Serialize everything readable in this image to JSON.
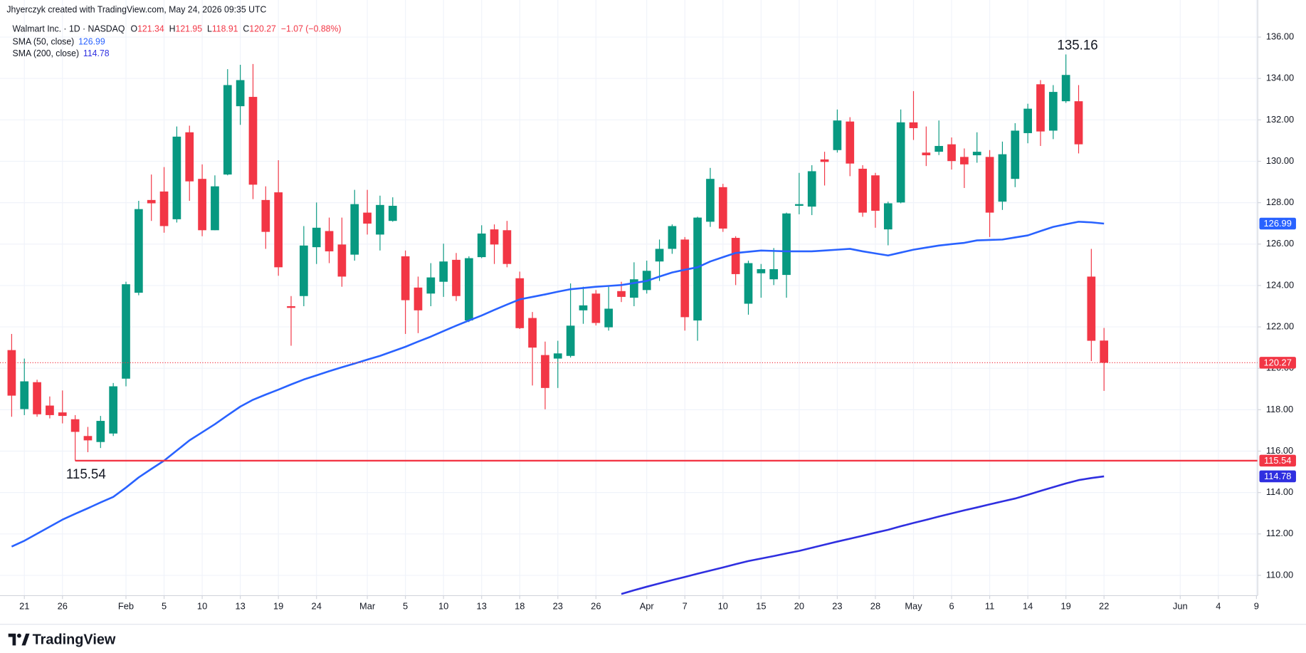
{
  "header": {
    "credit": "Jhyerczyk created with TradingView.com, May 24, 2026 09:35 UTC",
    "symbol": "Walmart Inc. · 1D · NASDAQ",
    "ohlc_labels": [
      "O",
      "H",
      "L",
      "C"
    ],
    "change": "−1.07 (−0.88%)"
  },
  "logo": "TradingView",
  "chart_data": {
    "type": "candlestick",
    "x": [
      "2026-01-20",
      "2026-01-21",
      "2026-01-22",
      "2026-01-23",
      "2026-01-26",
      "2026-01-27",
      "2026-01-28",
      "2026-01-29",
      "2026-01-30",
      "2026-02-02",
      "2026-02-03",
      "2026-02-04",
      "2026-02-05",
      "2026-02-06",
      "2026-02-09",
      "2026-02-10",
      "2026-02-11",
      "2026-02-12",
      "2026-02-13",
      "2026-02-17",
      "2026-02-18",
      "2026-02-19",
      "2026-02-20",
      "2026-02-23",
      "2026-02-24",
      "2026-02-25",
      "2026-02-26",
      "2026-02-27",
      "2026-03-02",
      "2026-03-03",
      "2026-03-04",
      "2026-03-05",
      "2026-03-06",
      "2026-03-09",
      "2026-03-10",
      "2026-03-11",
      "2026-03-12",
      "2026-03-13",
      "2026-03-16",
      "2026-03-17",
      "2026-03-18",
      "2026-03-19",
      "2026-03-20",
      "2026-03-23",
      "2026-03-24",
      "2026-03-25",
      "2026-03-26",
      "2026-03-27",
      "2026-03-30",
      "2026-03-31",
      "2026-04-01",
      "2026-04-02",
      "2026-04-06",
      "2026-04-07",
      "2026-04-08",
      "2026-04-09",
      "2026-04-10",
      "2026-04-13",
      "2026-04-14",
      "2026-04-15",
      "2026-04-16",
      "2026-04-17",
      "2026-04-20",
      "2026-04-21",
      "2026-04-22",
      "2026-04-23",
      "2026-04-24",
      "2026-04-27",
      "2026-04-28",
      "2026-04-29",
      "2026-04-30",
      "2026-05-01",
      "2026-05-04",
      "2026-05-05",
      "2026-05-06",
      "2026-05-07",
      "2026-05-08",
      "2026-05-11",
      "2026-05-12",
      "2026-05-13",
      "2026-05-14",
      "2026-05-15",
      "2026-05-18",
      "2026-05-19",
      "2026-05-20",
      "2026-05-21",
      "2026-05-22"
    ],
    "candles": {
      "open": [
        120.88,
        118.03,
        119.33,
        118.2,
        117.87,
        117.54,
        116.73,
        116.44,
        116.85,
        119.5,
        123.65,
        128.13,
        128.54,
        127.2,
        131.4,
        129.15,
        126.67,
        129.36,
        132.66,
        133.11,
        128.13,
        128.5,
        123.0,
        123.49,
        125.85,
        126.63,
        125.98,
        125.49,
        127.52,
        126.46,
        127.12,
        125.41,
        123.9,
        123.61,
        124.18,
        125.24,
        122.31,
        125.37,
        126.71,
        126.67,
        124.35,
        122.43,
        120.64,
        120.47,
        120.6,
        122.8,
        123.61,
        121.98,
        123.73,
        123.41,
        123.78,
        125.16,
        125.77,
        126.22,
        122.31,
        127.08,
        128.75,
        126.3,
        123.12,
        124.59,
        124.3,
        124.51,
        127.85,
        127.81,
        130.09,
        130.54,
        131.92,
        129.64,
        129.32,
        126.71,
        128.01,
        131.88,
        130.42,
        130.46,
        130.82,
        130.21,
        130.29,
        130.21,
        128.05,
        129.15,
        131.36,
        133.72,
        131.48,
        132.9,
        132.9,
        124.43,
        121.34
      ],
      "high": [
        121.66,
        120.47,
        119.45,
        118.64,
        118.93,
        117.74,
        117.17,
        117.7,
        119.29,
        124.18,
        128.09,
        129.36,
        129.72,
        131.68,
        131.72,
        129.85,
        129.32,
        134.45,
        134.66,
        134.7,
        128.79,
        130.05,
        123.49,
        126.87,
        128.01,
        127.28,
        127.28,
        128.62,
        128.62,
        128.34,
        128.26,
        125.69,
        124.43,
        125.08,
        126.02,
        125.57,
        125.41,
        126.91,
        126.95,
        127.12,
        124.67,
        122.72,
        121.29,
        121.33,
        124.1,
        123.94,
        123.78,
        123.94,
        124.18,
        125.12,
        125.2,
        126.22,
        126.95,
        126.34,
        127.32,
        129.68,
        128.91,
        126.38,
        125.2,
        125.04,
        125.81,
        127.52,
        129.44,
        129.81,
        130.46,
        132.5,
        132.13,
        129.81,
        129.44,
        128.05,
        132.5,
        133.39,
        131.68,
        131.97,
        131.15,
        130.62,
        131.4,
        130.54,
        130.95,
        131.84,
        132.78,
        133.92,
        133.68,
        135.16,
        133.68,
        125.77,
        121.95
      ],
      "low": [
        117.66,
        117.74,
        117.66,
        117.58,
        117.34,
        115.54,
        115.95,
        116.15,
        116.73,
        119.13,
        123.53,
        127.12,
        126.55,
        127.04,
        128.09,
        126.38,
        126.67,
        129.32,
        131.76,
        128.17,
        125.77,
        124.47,
        121.09,
        123.0,
        125.04,
        125.08,
        123.94,
        125.2,
        126.46,
        125.69,
        127.08,
        121.66,
        121.7,
        123.0,
        123.45,
        123.25,
        122.23,
        125.32,
        125.04,
        124.88,
        121.9,
        119.17,
        118.02,
        119.05,
        120.52,
        122.15,
        122.07,
        121.82,
        123.2,
        123.0,
        123.61,
        124.22,
        125.53,
        121.82,
        121.33,
        126.83,
        126.59,
        124.02,
        122.59,
        123.41,
        124.02,
        123.41,
        127.44,
        127.4,
        128.83,
        130.42,
        129.28,
        127.32,
        126.79,
        125.94,
        127.97,
        131.03,
        129.77,
        130.3,
        129.6,
        128.71,
        129.93,
        126.34,
        127.65,
        128.75,
        130.87,
        130.74,
        131.07,
        132.82,
        130.38,
        120.35,
        118.91
      ],
      "close": [
        118.68,
        119.37,
        117.78,
        117.74,
        117.7,
        116.93,
        116.52,
        117.46,
        119.13,
        124.06,
        127.69,
        127.97,
        126.87,
        131.19,
        129.03,
        126.67,
        128.79,
        133.68,
        133.92,
        128.87,
        126.59,
        124.88,
        122.92,
        125.93,
        126.79,
        125.65,
        124.43,
        127.93,
        126.99,
        127.89,
        127.85,
        123.29,
        122.8,
        124.39,
        125.16,
        123.49,
        125.32,
        126.51,
        125.98,
        125.04,
        121.94,
        121.0,
        119.05,
        120.72,
        122.06,
        123.04,
        122.19,
        122.88,
        123.45,
        124.3,
        124.71,
        125.77,
        126.87,
        122.47,
        127.28,
        129.15,
        126.75,
        124.55,
        125.08,
        124.79,
        124.79,
        127.48,
        127.93,
        129.52,
        129.97,
        131.97,
        129.89,
        127.52,
        127.61,
        127.97,
        131.88,
        131.6,
        130.29,
        130.74,
        130.01,
        129.85,
        130.46,
        127.52,
        130.34,
        131.48,
        132.54,
        131.44,
        133.35,
        134.17,
        130.82,
        121.33,
        120.27
      ],
      "up_color": "#089981",
      "down_color": "#f23645"
    },
    "series": [
      {
        "name": "SMA (50, close)",
        "color": "#2962ff",
        "values": [
          111.39,
          111.67,
          112.01,
          112.35,
          112.69,
          112.97,
          113.24,
          113.52,
          113.79,
          114.24,
          114.73,
          115.14,
          115.54,
          116.03,
          116.52,
          116.91,
          117.3,
          117.73,
          118.15,
          118.48,
          118.73,
          118.97,
          119.22,
          119.46,
          119.66,
          119.86,
          120.05,
          120.23,
          120.42,
          120.6,
          120.82,
          121.04,
          121.29,
          121.53,
          121.8,
          122.06,
          122.31,
          122.55,
          122.82,
          123.08,
          123.33,
          123.45,
          123.57,
          123.7,
          123.82,
          123.88,
          123.94,
          123.98,
          124.02,
          124.12,
          124.22,
          124.43,
          124.63,
          124.76,
          124.88,
          125.16,
          125.37,
          125.57,
          125.63,
          125.69,
          125.67,
          125.65,
          125.65,
          125.65,
          125.69,
          125.73,
          125.77,
          125.65,
          125.55,
          125.45,
          125.59,
          125.73,
          125.83,
          125.93,
          126.0,
          126.06,
          126.18,
          126.2,
          126.22,
          126.32,
          126.42,
          126.63,
          126.83,
          126.96,
          127.08,
          127.05,
          126.99
        ]
      },
      {
        "name": "SMA (200, close)",
        "color": "#2f2fe0",
        "values": [
          null,
          null,
          null,
          null,
          null,
          null,
          null,
          null,
          null,
          null,
          null,
          null,
          null,
          null,
          null,
          null,
          null,
          null,
          null,
          null,
          null,
          null,
          null,
          null,
          null,
          null,
          null,
          null,
          null,
          null,
          null,
          null,
          null,
          null,
          null,
          null,
          null,
          null,
          null,
          null,
          null,
          null,
          null,
          null,
          null,
          null,
          null,
          null,
          109.1,
          109.28,
          109.45,
          109.61,
          109.77,
          109.92,
          110.08,
          110.23,
          110.38,
          110.54,
          110.69,
          110.81,
          110.93,
          111.06,
          111.18,
          111.33,
          111.48,
          111.63,
          111.77,
          111.91,
          112.06,
          112.2,
          112.37,
          112.53,
          112.68,
          112.84,
          112.99,
          113.14,
          113.28,
          113.43,
          113.57,
          113.71,
          113.89,
          114.08,
          114.26,
          114.44,
          114.6,
          114.7,
          114.78
        ]
      }
    ],
    "ylim": [
      109.02,
      137.79
    ],
    "yticks": [
      {
        "value": 110,
        "label": "110.00"
      },
      {
        "value": 112,
        "label": "112.00"
      },
      {
        "value": 114,
        "label": "114.00"
      },
      {
        "value": 116,
        "label": "116.00"
      },
      {
        "value": 118,
        "label": "118.00"
      },
      {
        "value": 120,
        "label": "120.00"
      },
      {
        "value": 122,
        "label": "122.00"
      },
      {
        "value": 124,
        "label": "124.00"
      },
      {
        "value": 126,
        "label": "126.00"
      },
      {
        "value": 128,
        "label": "128.00"
      },
      {
        "value": 130,
        "label": "130.00"
      },
      {
        "value": 132,
        "label": "132.00"
      },
      {
        "value": 134,
        "label": "134.00"
      },
      {
        "value": 136,
        "label": "136.00"
      }
    ],
    "xticks": [
      {
        "value": "2026-01-21",
        "label": "21"
      },
      {
        "value": "2026-01-26",
        "label": "26"
      },
      {
        "value": "2026-02-02",
        "label": "Feb"
      },
      {
        "value": "2026-02-05",
        "label": "5"
      },
      {
        "value": "2026-02-10",
        "label": "10"
      },
      {
        "value": "2026-02-13",
        "label": "13"
      },
      {
        "value": "2026-02-19",
        "label": "19"
      },
      {
        "value": "2026-02-24",
        "label": "24"
      },
      {
        "value": "2026-03-02",
        "label": "Mar"
      },
      {
        "value": "2026-03-05",
        "label": "5"
      },
      {
        "value": "2026-03-10",
        "label": "10"
      },
      {
        "value": "2026-03-13",
        "label": "13"
      },
      {
        "value": "2026-03-18",
        "label": "18"
      },
      {
        "value": "2026-03-23",
        "label": "23"
      },
      {
        "value": "2026-03-26",
        "label": "26"
      },
      {
        "value": "2026-04-01",
        "label": "Apr"
      },
      {
        "value": "2026-04-07",
        "label": "7"
      },
      {
        "value": "2026-04-10",
        "label": "10"
      },
      {
        "value": "2026-04-15",
        "label": "15"
      },
      {
        "value": "2026-04-20",
        "label": "20"
      },
      {
        "value": "2026-04-23",
        "label": "23"
      },
      {
        "value": "2026-04-28",
        "label": "28"
      },
      {
        "value": "2026-05-01",
        "label": "May"
      },
      {
        "value": "2026-05-06",
        "label": "6"
      },
      {
        "value": "2026-05-11",
        "label": "11"
      },
      {
        "value": "2026-05-14",
        "label": "14"
      },
      {
        "value": "2026-05-19",
        "label": "19"
      },
      {
        "value": "2026-05-22",
        "label": "22"
      },
      {
        "value": "2026-06-01",
        "label": "Jun"
      },
      {
        "value": "2026-06-04",
        "label": "4"
      },
      {
        "value": "2026-06-09",
        "label": "9"
      }
    ],
    "grid": true
  }
}
